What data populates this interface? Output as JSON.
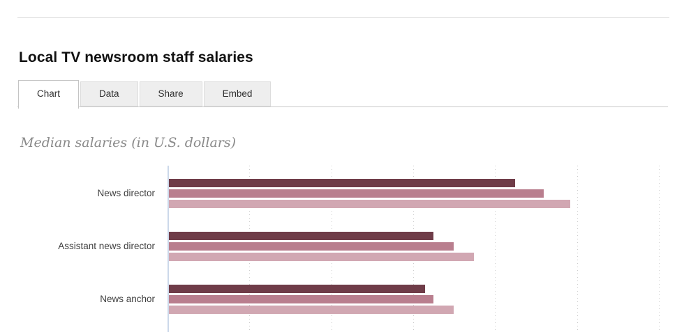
{
  "header": {
    "title": "Local TV newsroom staff salaries"
  },
  "tabs": {
    "items": [
      {
        "label": "Chart",
        "active": true
      },
      {
        "label": "Data",
        "active": false
      },
      {
        "label": "Share",
        "active": false
      },
      {
        "label": "Embed",
        "active": false
      }
    ]
  },
  "chart_data": {
    "type": "bar",
    "orientation": "horizontal",
    "title": "Median salaries (in U.S. dollars)",
    "categories": [
      "News director",
      "Assistant news director",
      "News anchor"
    ],
    "series": [
      {
        "name": "bar-dark",
        "color": "#6f3c48",
        "values": [
          84500,
          64500,
          62500
        ]
      },
      {
        "name": "bar-medium",
        "color": "#b97e8e",
        "values": [
          91500,
          69500,
          64500
        ]
      },
      {
        "name": "bar-light",
        "color": "#d1a7b2",
        "values": [
          98000,
          74500,
          69500
        ]
      }
    ],
    "x_axis": {
      "min": 0,
      "visible_max": 125000,
      "gridline_interval": 20000,
      "gridline_count": 6,
      "tick_labels_visible": false
    },
    "values_estimated_from_gridlines": true,
    "legend_visible": false,
    "grid": "dotted-vertical",
    "colors": {
      "axis_line": "#ccd8ea",
      "gridline": "#cccccc",
      "category_label": "#404040",
      "subtitle": "#8a8a8a",
      "title": "#111111"
    }
  }
}
